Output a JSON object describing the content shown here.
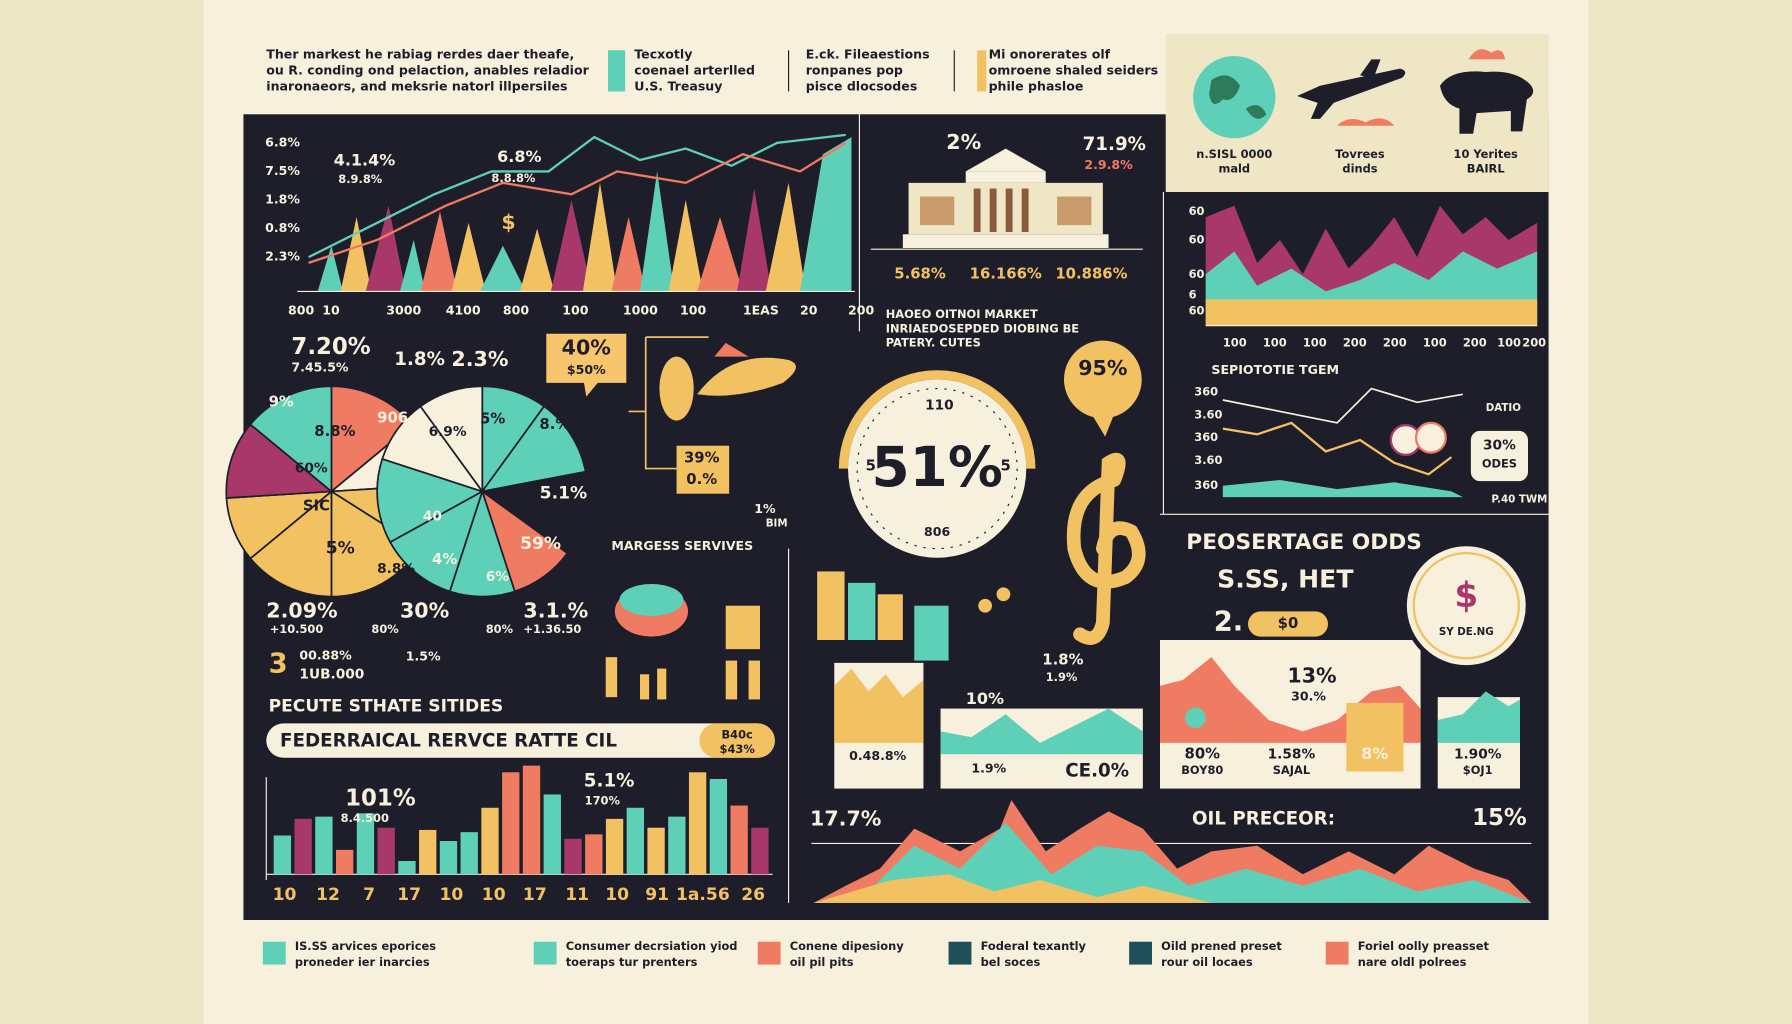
{
  "header": {
    "notes": [
      [
        "Ther markest he rabiag rerdes daer theafe,",
        "ou R. conding ond pelaction, anables reladior",
        "inaronaeors, and meksrie natorl illpersiles"
      ],
      [
        "Tecxotly",
        "coenael arterlled",
        "U.S. Treasuy"
      ],
      [
        "E.ck. Fileaestions",
        "ronpanes pop",
        "pisce dlocsodes"
      ],
      [
        "Mi onorerates olf",
        "omroene shaled seiders",
        "phile phasloe"
      ]
    ],
    "icons": [
      [
        "n.SISL 0000",
        "mald"
      ],
      [
        "Tovrees",
        "dinds"
      ],
      [
        "10 Yerites",
        "BAIRL"
      ]
    ]
  },
  "trend_chart": {
    "y_labels": [
      "6.8%",
      "7.5%",
      "1.8%",
      "0.8%",
      "2.3%"
    ],
    "annotations": [
      "4.1.4%",
      "8.9.8%",
      "6.8%",
      "8.8.8%",
      "$"
    ],
    "x_labels": [
      "800",
      "10",
      "3000",
      "4100",
      "800",
      "100",
      "1000",
      "100",
      "1EAS",
      "20",
      "200"
    ]
  },
  "reserve_panel": {
    "labels": [
      "2%",
      "71.9%",
      "2.9.8%",
      "5.68%",
      "16.166%",
      "10.886%"
    ],
    "caption": [
      "HAOEO OITNOI MARKET",
      "INRIAEDOSEPDED DIOBING BE",
      "PATERY. CUTES"
    ]
  },
  "odds_chart": {
    "y_labels": [
      "60",
      "60",
      "60",
      "6",
      "60"
    ],
    "x_labels": [
      "100",
      "100",
      "100",
      "200",
      "200",
      "100",
      "200",
      "100",
      "200"
    ],
    "title": "SEPIOTOTIE TGEM",
    "y2_labels": [
      "360",
      "3.60",
      "360",
      "3.60",
      "360"
    ],
    "notes": [
      "DATIO",
      "30%",
      "ODES",
      "P.40 TWM"
    ]
  },
  "pie_section": {
    "top": [
      "7.20%",
      "7.45.5%",
      "1.8%",
      "2.3%",
      "9%"
    ],
    "slices": [
      "8.8%",
      "906",
      "60%",
      "SIC",
      "5%",
      "8.8%",
      "6.9%",
      "5%",
      "8.%",
      "5.1%",
      "40",
      "4%",
      "6%",
      "59%"
    ],
    "bottom": [
      "2.09%",
      "+10.500",
      "30%",
      "80%",
      "80%",
      "3.1.%",
      "+1.36.50",
      "3",
      "00.88%",
      "1UB.000",
      "1.5%"
    ],
    "heading": "PECUTE STHATE SITIDES",
    "banner": "FEDERRAICAL RERVCE RATTE CIL",
    "banner_values": [
      "B40c",
      "$43%"
    ]
  },
  "services": {
    "labels": [
      "40%",
      "$50%",
      "39%",
      "0.%",
      "1%",
      "BIM",
      "MARGESS SERVIVES"
    ]
  },
  "gauge": {
    "value": "51%",
    "ticks": [
      "110",
      "5",
      "5",
      "806"
    ],
    "callout": "95%"
  },
  "stacks": {
    "labels": [
      "1.8%",
      "1.9%",
      "10%",
      "1.8%",
      "0.48.8%",
      "1.9%",
      "CE.0%"
    ]
  },
  "odds_panel": {
    "title": "PEOSERTAGE ODDS",
    "subtitle": "S.SS, HET",
    "labels": [
      "2.",
      "$0",
      "$",
      "SY DE.NG",
      "13%",
      "30.%",
      "80%",
      "BOY80",
      "1.58%",
      "SAJAL",
      "8%",
      "1.90%",
      "$OJ1"
    ]
  },
  "oil": {
    "left": "17.7%",
    "title": "OIL PRECEOR:",
    "right": "15%"
  },
  "bar_chart": {
    "annotations": [
      "101%",
      "8.4.500",
      "5.1%",
      "170%"
    ],
    "categories": [
      "10",
      "12",
      "7",
      "17",
      "10",
      "10",
      "17",
      "11",
      "10",
      "91",
      "1a.56",
      "26"
    ],
    "ylim": [
      0,
      100
    ],
    "values": [
      35,
      50,
      52,
      22,
      55,
      42,
      12,
      40,
      30,
      38,
      60,
      92,
      98,
      72,
      32,
      36,
      50,
      60,
      42,
      52,
      92,
      86,
      62,
      42
    ],
    "colors": [
      "#5fd0b8",
      "#a8386a",
      "#5fd0b8",
      "#ef7b62",
      "#5fd0b8",
      "#a8386a",
      "#5fd0b8",
      "#f2c162",
      "#5fd0b8",
      "#5fd0b8",
      "#f2c162",
      "#ef7b62",
      "#ef7b62",
      "#5fd0b8",
      "#a8386a",
      "#ef7b62",
      "#f2c162",
      "#5fd0b8",
      "#f2c162",
      "#5fd0b8",
      "#f2c162",
      "#5fd0b8",
      "#ef7b62",
      "#a8386a"
    ]
  },
  "legend": {
    "items": [
      {
        "color": "#5fd0b8",
        "lines": [
          "IS.SS arvices eporices",
          "proneder ier inarcies"
        ]
      },
      {
        "color": "#5fd0b8",
        "lines": [
          "Consumer decrsiation yiod",
          "toeraps tur prenters"
        ]
      },
      {
        "color": "#ef7b62",
        "lines": [
          "Conene dipesiony",
          "oil pil pits"
        ]
      },
      {
        "color": "#1f4f5a",
        "lines": [
          "Foderal texantly",
          "bel soces"
        ]
      },
      {
        "color": "#1f4f5a",
        "lines": [
          "Oild prened preset",
          "rour oil locaes"
        ]
      },
      {
        "color": "#ef7b62",
        "lines": [
          "Foriel oolly preasset",
          "nare oldl polrees"
        ]
      }
    ]
  }
}
